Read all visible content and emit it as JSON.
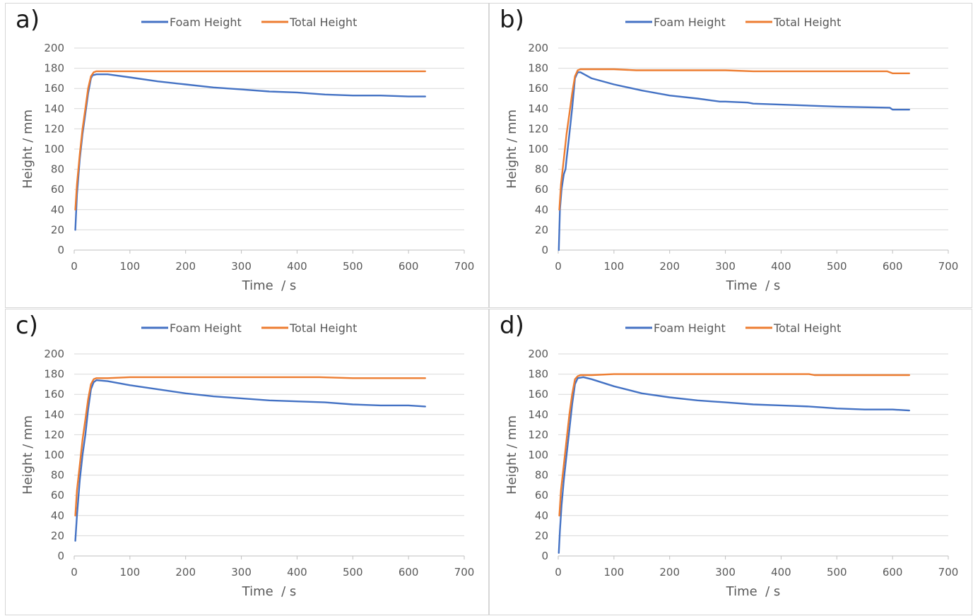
{
  "chart_data": [
    {
      "type": "line",
      "panel_label": "a)",
      "xlabel": "Time  / s",
      "ylabel": "Height / mm",
      "xlim": [
        0,
        700
      ],
      "ylim": [
        0,
        200
      ],
      "xticks": [
        0,
        100,
        200,
        300,
        400,
        500,
        600,
        700
      ],
      "yticks": [
        0,
        20,
        40,
        60,
        80,
        100,
        120,
        140,
        160,
        180,
        200
      ],
      "grid": "horizontal",
      "legend": "top-center",
      "series": [
        {
          "name": "Foam Height",
          "color": "#4472C4",
          "x": [
            2,
            5,
            10,
            15,
            20,
            25,
            30,
            33,
            40,
            60,
            100,
            150,
            200,
            250,
            300,
            350,
            400,
            450,
            500,
            550,
            600,
            630
          ],
          "y": [
            20,
            55,
            90,
            115,
            135,
            155,
            170,
            173,
            174,
            174,
            171,
            167,
            164,
            161,
            159,
            157,
            156,
            154,
            153,
            153,
            152,
            152
          ]
        },
        {
          "name": "Total Height",
          "color": "#ED7D31",
          "x": [
            2,
            5,
            10,
            15,
            20,
            25,
            30,
            35,
            40,
            60,
            100,
            200,
            300,
            400,
            500,
            600,
            630
          ],
          "y": [
            40,
            65,
            95,
            120,
            140,
            160,
            172,
            176,
            177,
            177,
            177,
            177,
            177,
            177,
            177,
            177,
            177
          ]
        }
      ]
    },
    {
      "type": "line",
      "panel_label": "b)",
      "xlabel": "Time  / s",
      "ylabel": "Height / mm",
      "xlim": [
        0,
        700
      ],
      "ylim": [
        0,
        200
      ],
      "xticks": [
        0,
        100,
        200,
        300,
        400,
        500,
        600,
        700
      ],
      "yticks": [
        0,
        20,
        40,
        60,
        80,
        100,
        120,
        140,
        160,
        180,
        200
      ],
      "grid": "horizontal",
      "legend": "top-center",
      "series": [
        {
          "name": "Foam Height",
          "color": "#4472C4",
          "x": [
            1,
            3,
            6,
            10,
            13,
            15,
            20,
            25,
            30,
            35,
            40,
            60,
            100,
            150,
            200,
            250,
            290,
            300,
            340,
            350,
            400,
            500,
            595,
            600,
            630
          ],
          "y": [
            0,
            40,
            60,
            75,
            80,
            90,
            115,
            140,
            170,
            176,
            176,
            170,
            164,
            158,
            153,
            150,
            147,
            147,
            146,
            145,
            144,
            142,
            141,
            139,
            139
          ]
        },
        {
          "name": "Total Height",
          "color": "#ED7D31",
          "x": [
            2,
            5,
            10,
            15,
            20,
            25,
            30,
            35,
            40,
            60,
            100,
            140,
            200,
            300,
            350,
            400,
            500,
            590,
            600,
            630
          ],
          "y": [
            40,
            65,
            90,
            115,
            135,
            155,
            172,
            178,
            179,
            179,
            179,
            178,
            178,
            178,
            177,
            177,
            177,
            177,
            175,
            175
          ]
        }
      ]
    },
    {
      "type": "line",
      "panel_label": "c)",
      "xlabel": "Time  / s",
      "ylabel": "Height / mm",
      "xlim": [
        0,
        700
      ],
      "ylim": [
        0,
        200
      ],
      "xticks": [
        0,
        100,
        200,
        300,
        400,
        500,
        600,
        700
      ],
      "yticks": [
        0,
        20,
        40,
        60,
        80,
        100,
        120,
        140,
        160,
        180,
        200
      ],
      "grid": "horizontal",
      "legend": "top-center",
      "series": [
        {
          "name": "Foam Height",
          "color": "#4472C4",
          "x": [
            2,
            5,
            10,
            15,
            20,
            25,
            30,
            35,
            40,
            60,
            100,
            150,
            200,
            250,
            300,
            350,
            400,
            450,
            500,
            550,
            600,
            630
          ],
          "y": [
            15,
            40,
            75,
            100,
            120,
            145,
            165,
            172,
            174,
            173,
            169,
            165,
            161,
            158,
            156,
            154,
            153,
            152,
            150,
            149,
            149,
            148
          ]
        },
        {
          "name": "Total Height",
          "color": "#ED7D31",
          "x": [
            2,
            5,
            10,
            15,
            20,
            25,
            30,
            35,
            40,
            60,
            100,
            200,
            300,
            400,
            440,
            500,
            600,
            630
          ],
          "y": [
            40,
            65,
            90,
            115,
            135,
            155,
            170,
            175,
            176,
            176,
            177,
            177,
            177,
            177,
            177,
            176,
            176,
            176
          ]
        }
      ]
    },
    {
      "type": "line",
      "panel_label": "d)",
      "xlabel": "Time  / s",
      "ylabel": "Height / mm",
      "xlim": [
        0,
        700
      ],
      "ylim": [
        0,
        200
      ],
      "xticks": [
        0,
        100,
        200,
        300,
        400,
        500,
        600,
        700
      ],
      "yticks": [
        0,
        20,
        40,
        60,
        80,
        100,
        120,
        140,
        160,
        180,
        200
      ],
      "grid": "horizontal",
      "legend": "top-center",
      "series": [
        {
          "name": "Foam Height",
          "color": "#4472C4",
          "x": [
            1,
            3,
            6,
            10,
            15,
            20,
            25,
            30,
            35,
            45,
            60,
            100,
            150,
            200,
            250,
            300,
            350,
            400,
            450,
            500,
            550,
            600,
            630
          ],
          "y": [
            3,
            25,
            50,
            75,
            100,
            125,
            150,
            170,
            176,
            177,
            175,
            168,
            161,
            157,
            154,
            152,
            150,
            149,
            148,
            146,
            145,
            145,
            144
          ]
        },
        {
          "name": "Total Height",
          "color": "#ED7D31",
          "x": [
            2,
            5,
            10,
            15,
            20,
            25,
            30,
            35,
            40,
            60,
            100,
            200,
            300,
            400,
            450,
            460,
            500,
            600,
            630
          ],
          "y": [
            40,
            65,
            90,
            115,
            140,
            160,
            175,
            178,
            179,
            179,
            180,
            180,
            180,
            180,
            180,
            179,
            179,
            179,
            179
          ]
        }
      ]
    }
  ]
}
